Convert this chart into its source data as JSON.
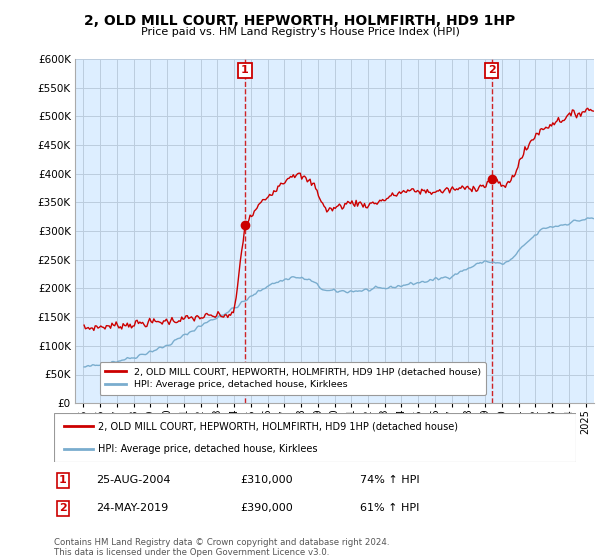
{
  "title": "2, OLD MILL COURT, HEPWORTH, HOLMFIRTH, HD9 1HP",
  "subtitle": "Price paid vs. HM Land Registry's House Price Index (HPI)",
  "ylim": [
    0,
    600000
  ],
  "yticks": [
    0,
    50000,
    100000,
    150000,
    200000,
    250000,
    300000,
    350000,
    400000,
    450000,
    500000,
    550000,
    600000
  ],
  "x_start_year": 1995,
  "x_end_year": 2025,
  "sale1_date": "25-AUG-2004",
  "sale1_price": 310000,
  "sale1_hpi_pct": 74,
  "sale2_date": "24-MAY-2019",
  "sale2_price": 390000,
  "sale2_hpi_pct": 61,
  "legend_label1": "2, OLD MILL COURT, HEPWORTH, HOLMFIRTH, HD9 1HP (detached house)",
  "legend_label2": "HPI: Average price, detached house, Kirklees",
  "footer": "Contains HM Land Registry data © Crown copyright and database right 2024.\nThis data is licensed under the Open Government Licence v3.0.",
  "red_color": "#cc0000",
  "blue_color": "#7aadce",
  "vline_color": "#cc0000",
  "background_color": "#ffffff",
  "chart_bg_color": "#ddeeff",
  "grid_color": "#bbccdd"
}
